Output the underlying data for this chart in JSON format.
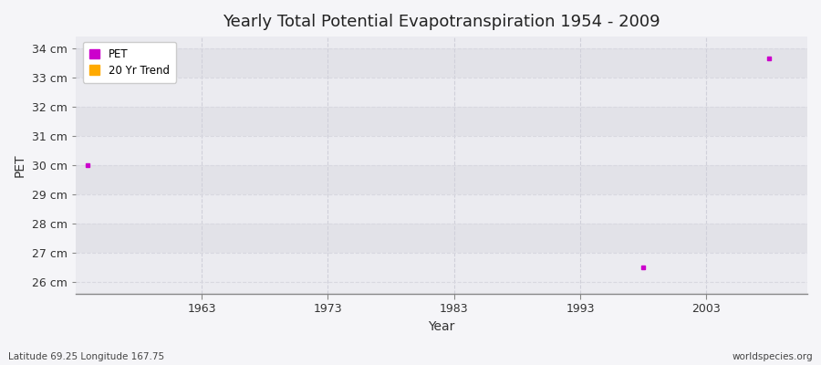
{
  "title": "Yearly Total Potential Evapotranspiration 1954 - 2009",
  "xlabel": "Year",
  "ylabel": "PET",
  "subtitle_left": "Latitude 69.25 Longitude 167.75",
  "subtitle_right": "worldspecies.org",
  "xlim": [
    1953,
    2011
  ],
  "ylim": [
    25.6,
    34.4
  ],
  "yticks": [
    26,
    27,
    28,
    29,
    30,
    31,
    32,
    33,
    34
  ],
  "ytick_labels": [
    "26 cm",
    "27 cm",
    "28 cm",
    "29 cm",
    "30 cm",
    "31 cm",
    "32 cm",
    "33 cm",
    "34 cm"
  ],
  "xticks": [
    1963,
    1973,
    1983,
    1993,
    2003
  ],
  "fig_bg_color": "#f5f5f8",
  "plot_bg_color": "#ebebf0",
  "band_color_light": "#ebebf0",
  "band_color_dark": "#e2e2e8",
  "grid_color_h": "#d8d8e0",
  "grid_color_v": "#d0d0da",
  "pet_color": "#cc00cc",
  "trend_color": "#ffaa00",
  "pet_points": [
    [
      1954,
      30.0
    ],
    [
      1998,
      26.5
    ],
    [
      2008,
      33.65
    ]
  ],
  "legend_pet_label": "PET",
  "legend_trend_label": "20 Yr Trend",
  "spine_color": "#888888"
}
